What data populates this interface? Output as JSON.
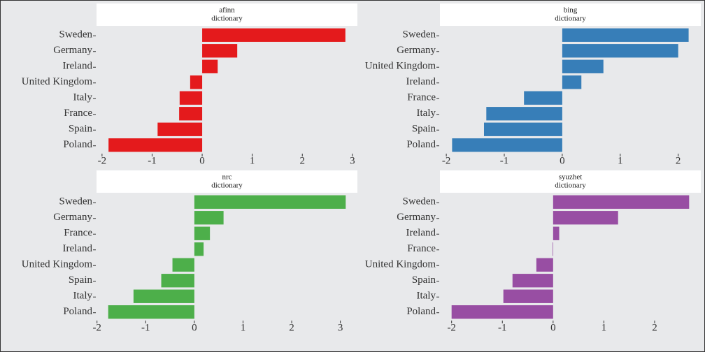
{
  "chart_data": [
    {
      "type": "bar",
      "orientation": "horizontal",
      "strip": [
        "afinn",
        "dictionary"
      ],
      "categories": [
        "Sweden",
        "Germany",
        "Ireland",
        "United Kingdom",
        "Italy",
        "France",
        "Spain",
        "Poland"
      ],
      "values": [
        2.86,
        0.7,
        0.31,
        -0.24,
        -0.45,
        -0.46,
        -0.89,
        -1.87
      ],
      "color": "#e41a1c",
      "xlim": [
        -2.11,
        3.1
      ],
      "xticks": [
        -2,
        -1,
        0,
        1,
        2,
        3
      ]
    },
    {
      "type": "bar",
      "orientation": "horizontal",
      "strip": [
        "bing",
        "dictionary"
      ],
      "categories": [
        "Sweden",
        "Germany",
        "United Kingdom",
        "Ireland",
        "France",
        "Italy",
        "Spain",
        "Poland"
      ],
      "values": [
        2.18,
        2.0,
        0.71,
        0.33,
        -0.66,
        -1.31,
        -1.35,
        -1.9
      ],
      "color": "#377eb8",
      "xlim": [
        -2.11,
        2.39
      ],
      "xticks": [
        -2,
        -1,
        0,
        1,
        2
      ]
    },
    {
      "type": "bar",
      "orientation": "horizontal",
      "strip": [
        "nrc",
        "dictionary"
      ],
      "categories": [
        "Sweden",
        "Germany",
        "France",
        "Ireland",
        "United Kingdom",
        "Spain",
        "Italy",
        "Poland"
      ],
      "values": [
        3.11,
        0.6,
        0.32,
        0.19,
        -0.45,
        -0.68,
        -1.25,
        -1.77
      ],
      "color": "#4daf4a",
      "xlim": [
        -2.01,
        3.35
      ],
      "xticks": [
        -2,
        -1,
        0,
        1,
        2,
        3
      ]
    },
    {
      "type": "bar",
      "orientation": "horizontal",
      "strip": [
        "syuzhet",
        "dictionary"
      ],
      "categories": [
        "Sweden",
        "Germany",
        "Ireland",
        "France",
        "United Kingdom",
        "Spain",
        "Italy",
        "Poland"
      ],
      "values": [
        2.68,
        1.28,
        0.12,
        -0.01,
        -0.33,
        -0.8,
        -0.98,
        -2.0
      ],
      "color": "#984ea3",
      "xlim": [
        -2.23,
        2.91
      ],
      "xticks": [
        -2,
        -1,
        0,
        1,
        2
      ]
    }
  ]
}
